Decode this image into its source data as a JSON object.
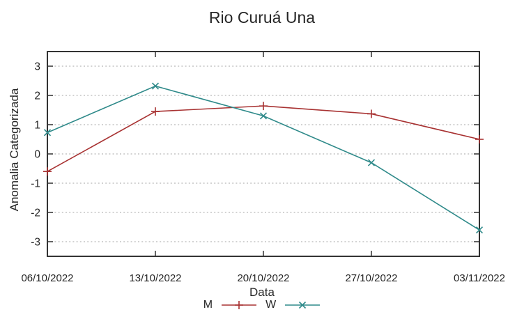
{
  "chart_data": {
    "type": "line",
    "title": "Rio Curuá Una",
    "xlabel": "Data",
    "ylabel": "Anomalia Categorizada",
    "categories": [
      "06/10/2022",
      "13/10/2022",
      "20/10/2022",
      "27/10/2022",
      "03/11/2022"
    ],
    "series": [
      {
        "name": "M",
        "marker": "plus",
        "color": "#a83232",
        "values": [
          -0.6,
          1.45,
          1.64,
          1.37,
          0.5
        ]
      },
      {
        "name": "W",
        "marker": "cross",
        "color": "#2f8a8a",
        "values": [
          0.73,
          2.32,
          1.3,
          -0.3,
          -2.6
        ]
      }
    ],
    "ylim": [
      -3.5,
      3.5
    ],
    "yticks": [
      3,
      2,
      1,
      0,
      -1,
      -2,
      -3
    ],
    "grid": true,
    "legend_position": "bottom-center",
    "axis_color": "#333333",
    "grid_color": "#b8b8b8",
    "text_color": "#262626",
    "background": "#ffffff"
  }
}
